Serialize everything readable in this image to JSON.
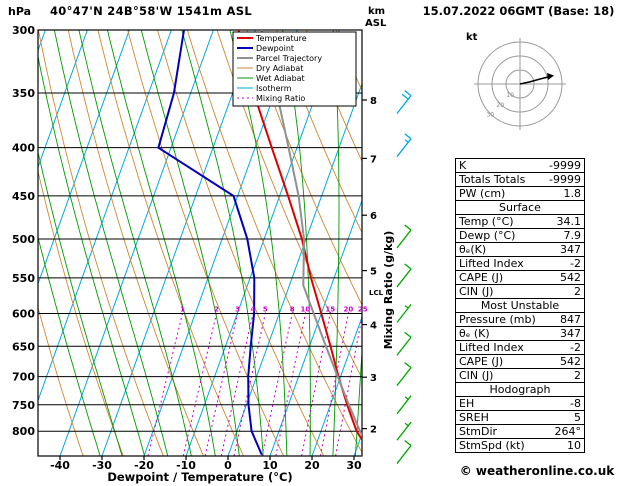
{
  "header": {
    "station_title": "40°47'N 24B°58'W 1541m ASL",
    "datetime": "15.07.2022 06GMT (Base: 18)"
  },
  "axes": {
    "pressure_unit": "hPa",
    "km_unit_line1": "km",
    "km_unit_line2": "ASL",
    "x_label": "Dewpoint / Temperature (°C)",
    "right_label": "Mixing Ratio (g/kg)",
    "pressure_ticks": [
      300,
      350,
      400,
      450,
      500,
      550,
      600,
      650,
      700,
      750,
      800
    ],
    "km_ticks": [
      8,
      7,
      6,
      5,
      4,
      3,
      2
    ],
    "temp_ticks": [
      -40,
      -30,
      -20,
      -10,
      0,
      10,
      20,
      30
    ],
    "lcl_label": "LCL"
  },
  "legend": [
    {
      "label": "Temperature",
      "color": "#dd0000",
      "width": 2,
      "dash": ""
    },
    {
      "label": "Dewpoint",
      "color": "#0000bb",
      "width": 2,
      "dash": ""
    },
    {
      "label": "Parcel Trajectory",
      "color": "#909090",
      "width": 2,
      "dash": ""
    },
    {
      "label": "Dry Adiabat",
      "color": "#cc8833",
      "width": 1,
      "dash": ""
    },
    {
      "label": "Wet Adiabat",
      "color": "#009900",
      "width": 1,
      "dash": ""
    },
    {
      "label": "Isotherm",
      "color": "#00aadd",
      "width": 1,
      "dash": ""
    },
    {
      "label": "Mixing Ratio",
      "color": "#cc00cc",
      "width": 1,
      "dash": "2,3"
    }
  ],
  "chart_data": {
    "type": "line",
    "chart_kind": "skew-t-log-p sounding",
    "pressure_axis_hPa": [
      300,
      850
    ],
    "temp_axis_C": [
      -40,
      32
    ],
    "surface_pressure_hPa": 847,
    "series": [
      {
        "name": "Temperature",
        "color": "#dd0000",
        "width": 2,
        "points": [
          [
            847,
            34.1
          ],
          [
            800,
            28.5
          ],
          [
            750,
            24.0
          ],
          [
            700,
            19.5
          ],
          [
            650,
            15.0
          ],
          [
            600,
            10.0
          ],
          [
            550,
            4.5
          ],
          [
            500,
            -1.0
          ],
          [
            450,
            -8.0
          ],
          [
            400,
            -16.0
          ],
          [
            350,
            -25.0
          ],
          [
            300,
            -34.0
          ]
        ]
      },
      {
        "name": "Dewpoint",
        "color": "#0000bb",
        "width": 2,
        "points": [
          [
            847,
            7.9
          ],
          [
            800,
            3.5
          ],
          [
            750,
            0.5
          ],
          [
            700,
            -2.0
          ],
          [
            650,
            -4.0
          ],
          [
            600,
            -6.0
          ],
          [
            550,
            -9.0
          ],
          [
            500,
            -14.0
          ],
          [
            450,
            -21.0
          ],
          [
            400,
            -43.0
          ],
          [
            350,
            -44.0
          ],
          [
            300,
            -47.0
          ]
        ]
      },
      {
        "name": "Parcel Trajectory",
        "color": "#909090",
        "width": 2,
        "points": [
          [
            847,
            34.1
          ],
          [
            800,
            29.3
          ],
          [
            750,
            24.4
          ],
          [
            700,
            19.3
          ],
          [
            650,
            13.9
          ],
          [
            600,
            8.2
          ],
          [
            560,
            3.3
          ],
          [
            500,
            -0.5
          ],
          [
            450,
            -5.5
          ],
          [
            400,
            -12.0
          ],
          [
            350,
            -19.5
          ],
          [
            300,
            -28.5
          ]
        ]
      }
    ],
    "mixing_ratio_lines": [
      1,
      2,
      3,
      4,
      5,
      8,
      10,
      15,
      20,
      25
    ],
    "isotherm_step_C": 10,
    "dry_adiabat_theta_K": [
      250,
      430,
      10
    ],
    "wet_adiabat_start_C": [
      -20,
      40,
      5
    ]
  },
  "winds": [
    {
      "p": 360,
      "kt": 20,
      "color": "#00aadd"
    },
    {
      "p": 400,
      "kt": 15,
      "color": "#00aadd"
    },
    {
      "p": 500,
      "kt": 10,
      "color": "#00aa00"
    },
    {
      "p": 550,
      "kt": 10,
      "color": "#00aa00"
    },
    {
      "p": 600,
      "kt": 5,
      "color": "#00aa00"
    },
    {
      "p": 650,
      "kt": 10,
      "color": "#00aa00"
    },
    {
      "p": 700,
      "kt": 10,
      "color": "#00aa00"
    },
    {
      "p": 750,
      "kt": 5,
      "color": "#00aa00"
    },
    {
      "p": 800,
      "kt": 5,
      "color": "#00aa00"
    },
    {
      "p": 847,
      "kt": 10,
      "color": "#00aa00"
    }
  ],
  "hodograph": {
    "unit": "kt",
    "rings": [
      10,
      20,
      30
    ],
    "trace_kt": [
      [
        0,
        0
      ],
      [
        7,
        1.5
      ],
      [
        14,
        3.5
      ],
      [
        20,
        5
      ]
    ]
  },
  "panel": {
    "sections": [
      {
        "header": null,
        "rows": [
          [
            "K",
            "-9999"
          ],
          [
            "Totals Totals",
            "-9999"
          ],
          [
            "PW (cm)",
            "1.8"
          ]
        ]
      },
      {
        "header": "Surface",
        "rows": [
          [
            "Temp (°C)",
            "34.1"
          ],
          [
            "Dewp (°C)",
            "7.9"
          ],
          [
            "θₑ(K)",
            "347"
          ],
          [
            "Lifted Index",
            "-2"
          ],
          [
            "CAPE (J)",
            "542"
          ],
          [
            "CIN (J)",
            "2"
          ]
        ]
      },
      {
        "header": "Most Unstable",
        "rows": [
          [
            "Pressure (mb)",
            "847"
          ],
          [
            "θₑ (K)",
            "347"
          ],
          [
            "Lifted Index",
            "-2"
          ],
          [
            "CAPE (J)",
            "542"
          ],
          [
            "CIN (J)",
            "2"
          ]
        ]
      },
      {
        "header": "Hodograph",
        "rows": [
          [
            "EH",
            "-8"
          ],
          [
            "SREH",
            "5"
          ],
          [
            "StmDir",
            "264°"
          ],
          [
            "StmSpd (kt)",
            "10"
          ]
        ]
      }
    ]
  },
  "footer": {
    "credit": "© weatheronline.co.uk"
  }
}
